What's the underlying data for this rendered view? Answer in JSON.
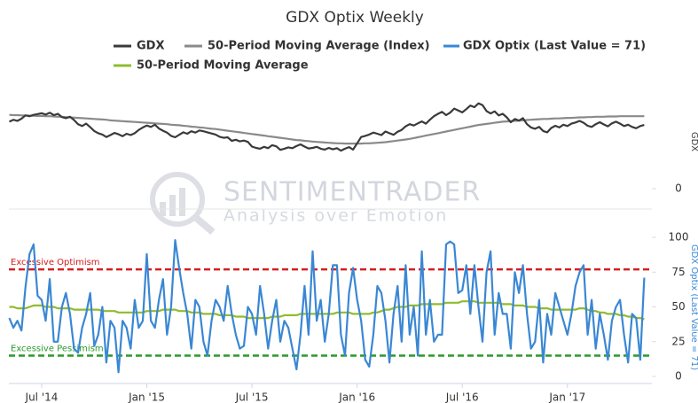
{
  "chart_data": [
    {
      "type": "line",
      "title": "GDX Optix Weekly",
      "ylim": [
        0,
        35
      ],
      "yticks": [
        0
      ],
      "series": [
        {
          "name": "GDX",
          "color": "#3a3a3a",
          "values": [
            24.5,
            25.2,
            24.8,
            25.6,
            26.8,
            26.5,
            27.0,
            27.3,
            27.6,
            27.1,
            27.8,
            26.9,
            27.4,
            26.2,
            25.8,
            26.3,
            25.1,
            23.6,
            22.9,
            23.8,
            22.5,
            21.1,
            20.3,
            19.8,
            18.9,
            19.6,
            20.4,
            19.9,
            19.2,
            20.1,
            19.6,
            20.3,
            21.5,
            22.4,
            23.1,
            22.6,
            23.4,
            22.0,
            21.2,
            20.5,
            19.3,
            18.8,
            19.7,
            20.6,
            20.1,
            21.0,
            20.5,
            21.3,
            21.0,
            20.6,
            20.2,
            19.8,
            19.0,
            18.6,
            18.8,
            17.5,
            17.9,
            17.3,
            17.6,
            17.1,
            15.4,
            14.9,
            14.6,
            15.3,
            14.8,
            15.9,
            15.5,
            14.2,
            14.6,
            15.1,
            14.8,
            15.6,
            16.2,
            15.4,
            14.7,
            14.9,
            15.3,
            14.6,
            14.3,
            14.9,
            14.4,
            14.8,
            13.9,
            14.6,
            15.2,
            14.3,
            16.6,
            18.9,
            19.3,
            19.8,
            20.5,
            20.1,
            19.6,
            20.9,
            20.3,
            19.7,
            20.8,
            21.5,
            22.8,
            23.6,
            23.1,
            23.9,
            24.6,
            23.8,
            25.2,
            26.5,
            27.4,
            28.1,
            26.9,
            27.8,
            29.3,
            28.6,
            27.9,
            29.1,
            30.4,
            29.8,
            31.2,
            30.6,
            28.4,
            27.5,
            28.3,
            26.8,
            27.4,
            26.1,
            24.3,
            25.5,
            24.9,
            25.8,
            23.6,
            22.4,
            21.9,
            22.6,
            21.1,
            20.6,
            22.2,
            23.0,
            22.4,
            23.4,
            22.9,
            23.8,
            24.2,
            24.8,
            24.1,
            23.0,
            22.6,
            23.6,
            24.3,
            23.5,
            22.8,
            23.9,
            24.5,
            23.8,
            22.9,
            23.4,
            22.6,
            22.1,
            22.9,
            23.3
          ]
        },
        {
          "name": "50-Period Moving Average (Index)",
          "color": "#8a8a8a",
          "values": [
            27.0,
            26.9,
            26.9,
            26.8,
            26.8,
            26.7,
            26.7,
            26.6,
            26.6,
            26.5,
            26.5,
            26.4,
            26.3,
            26.3,
            26.2,
            26.1,
            26.0,
            25.9,
            25.8,
            25.7,
            25.6,
            25.5,
            25.4,
            25.3,
            25.2,
            25.0,
            24.9,
            24.8,
            24.7,
            24.6,
            24.5,
            24.4,
            24.3,
            24.2,
            24.1,
            24.0,
            23.9,
            23.8,
            23.7,
            23.6,
            23.4,
            23.3,
            23.2,
            23.0,
            22.9,
            22.7,
            22.6,
            22.4,
            22.3,
            22.1,
            21.9,
            21.8,
            21.6,
            21.4,
            21.2,
            21.0,
            20.8,
            20.6,
            20.4,
            20.2,
            20.0,
            19.8,
            19.6,
            19.4,
            19.2,
            19.0,
            18.8,
            18.6,
            18.4,
            18.2,
            18.0,
            17.8,
            17.7,
            17.5,
            17.4,
            17.2,
            17.1,
            17.0,
            16.9,
            16.8,
            16.7,
            16.6,
            16.6,
            16.5,
            16.5,
            16.5,
            16.5,
            16.5,
            16.6,
            16.6,
            16.7,
            16.8,
            16.9,
            17.0,
            17.2,
            17.4,
            17.6,
            17.8,
            18.0,
            18.2,
            18.5,
            18.8,
            19.1,
            19.4,
            19.7,
            20.0,
            20.3,
            20.6,
            20.9,
            21.2,
            21.5,
            21.8,
            22.1,
            22.4,
            22.7,
            23.0,
            23.3,
            23.5,
            23.7,
            23.9,
            24.1,
            24.3,
            24.5,
            24.6,
            24.7,
            24.8,
            24.9,
            25.0,
            25.1,
            25.2,
            25.3,
            25.4,
            25.5,
            25.5,
            25.6,
            25.7,
            25.7,
            25.8,
            25.9,
            25.9,
            26.0,
            26.1,
            26.1,
            26.2,
            26.2,
            26.3,
            26.3,
            26.3,
            26.4,
            26.4,
            26.4,
            26.5,
            26.5,
            26.5,
            26.5,
            26.5,
            26.5,
            26.5
          ]
        }
      ],
      "watermark": [
        "SENTIMENTRADER",
        "Analysis over Emotion"
      ]
    },
    {
      "type": "line",
      "categories": [
        null,
        null,
        null,
        null,
        null,
        null,
        null,
        null,
        "Jul '14",
        null,
        null,
        null,
        null,
        null,
        null,
        null,
        null,
        null,
        null,
        null,
        null,
        null,
        null,
        null,
        null,
        null,
        null,
        null,
        null,
        null,
        null,
        null,
        null,
        null,
        "Jan '15",
        null,
        null,
        null,
        null,
        null,
        null,
        null,
        null,
        null,
        null,
        null,
        null,
        null,
        null,
        null,
        null,
        null,
        null,
        null,
        null,
        null,
        null,
        null,
        null,
        null,
        "Jul '15",
        null,
        null,
        null,
        null,
        null,
        null,
        null,
        null,
        null,
        null,
        null,
        null,
        null,
        null,
        null,
        null,
        null,
        null,
        null,
        null,
        null,
        null,
        null,
        null,
        null,
        "Jan '16",
        null,
        null,
        null,
        null,
        null,
        null,
        null,
        null,
        null,
        null,
        null,
        null,
        null,
        null,
        null,
        null,
        null,
        null,
        null,
        null,
        null,
        null,
        null,
        null,
        null,
        "Jul '16",
        null,
        null,
        null,
        null,
        null,
        null,
        null,
        null,
        null,
        null,
        null,
        null,
        null,
        null,
        null,
        null,
        null,
        null,
        null,
        null,
        null,
        null,
        null,
        null,
        null,
        "Jan '17",
        null,
        null,
        null,
        null,
        null,
        null,
        null,
        null,
        null,
        null,
        null,
        null,
        null,
        null,
        null,
        null,
        null,
        null,
        null
      ],
      "ylim": [
        0,
        100
      ],
      "yticks": [
        0,
        25,
        50,
        75,
        100
      ],
      "hlines": [
        {
          "value": 77,
          "label": "Excessive Optimism",
          "color": "#d42020"
        },
        {
          "value": 15,
          "label": "Excessive Pessimism",
          "color": "#2a9a2a"
        }
      ],
      "series": [
        {
          "name": "GDX Optix (Last Value = 71)",
          "color": "#3a87d4",
          "values": [
            42,
            35,
            40,
            33,
            64,
            88,
            95,
            58,
            55,
            40,
            70,
            25,
            25,
            50,
            60,
            45,
            20,
            17,
            35,
            45,
            60,
            22,
            30,
            50,
            10,
            40,
            35,
            3,
            40,
            35,
            20,
            55,
            35,
            40,
            88,
            40,
            35,
            55,
            70,
            30,
            50,
            98,
            78,
            60,
            45,
            20,
            55,
            50,
            25,
            15,
            40,
            55,
            50,
            40,
            65,
            45,
            30,
            20,
            22,
            50,
            45,
            30,
            65,
            45,
            20,
            40,
            55,
            25,
            40,
            35,
            20,
            5,
            30,
            65,
            30,
            90,
            40,
            55,
            25,
            45,
            80,
            80,
            30,
            15,
            60,
            78,
            55,
            40,
            12,
            7,
            30,
            65,
            60,
            40,
            10,
            45,
            65,
            25,
            80,
            30,
            50,
            15,
            90,
            30,
            55,
            25,
            30,
            30,
            95,
            97,
            95,
            60,
            62,
            80,
            45,
            80,
            50,
            25,
            75,
            90,
            30,
            60,
            45,
            45,
            20,
            75,
            60,
            80,
            45,
            20,
            25,
            55,
            10,
            45,
            30,
            60,
            50,
            40,
            30,
            45,
            65,
            75,
            80,
            30,
            55,
            20,
            45,
            30,
            12,
            40,
            50,
            55,
            30,
            10,
            45,
            42,
            12,
            71
          ]
        },
        {
          "name": "50-Period Moving Average",
          "color": "#8fbc2e",
          "values": [
            50,
            50,
            49,
            49,
            49,
            50,
            51,
            51,
            51,
            50,
            50,
            50,
            49,
            49,
            49,
            49,
            48,
            48,
            48,
            48,
            48,
            48,
            48,
            47,
            47,
            47,
            47,
            46,
            46,
            46,
            46,
            46,
            46,
            46,
            47,
            47,
            47,
            47,
            48,
            48,
            48,
            48,
            47,
            47,
            47,
            46,
            46,
            46,
            45,
            45,
            45,
            45,
            44,
            44,
            44,
            44,
            43,
            43,
            43,
            42,
            42,
            42,
            42,
            42,
            42,
            43,
            43,
            43,
            44,
            44,
            44,
            44,
            45,
            45,
            45,
            45,
            45,
            45,
            45,
            45,
            45,
            46,
            46,
            46,
            46,
            45,
            45,
            45,
            45,
            45,
            46,
            46,
            47,
            48,
            48,
            49,
            50,
            50,
            50,
            51,
            51,
            51,
            52,
            52,
            52,
            52,
            52,
            52,
            53,
            53,
            53,
            53,
            54,
            54,
            54,
            54,
            53,
            53,
            53,
            53,
            53,
            53,
            52,
            52,
            52,
            51,
            51,
            51,
            50,
            50,
            50,
            49,
            49,
            49,
            48,
            48,
            48,
            48,
            48,
            48,
            48,
            49,
            49,
            48,
            47,
            47,
            46,
            46,
            45,
            45,
            45,
            44,
            44,
            43,
            43,
            42,
            42,
            41
          ]
        }
      ]
    }
  ]
}
